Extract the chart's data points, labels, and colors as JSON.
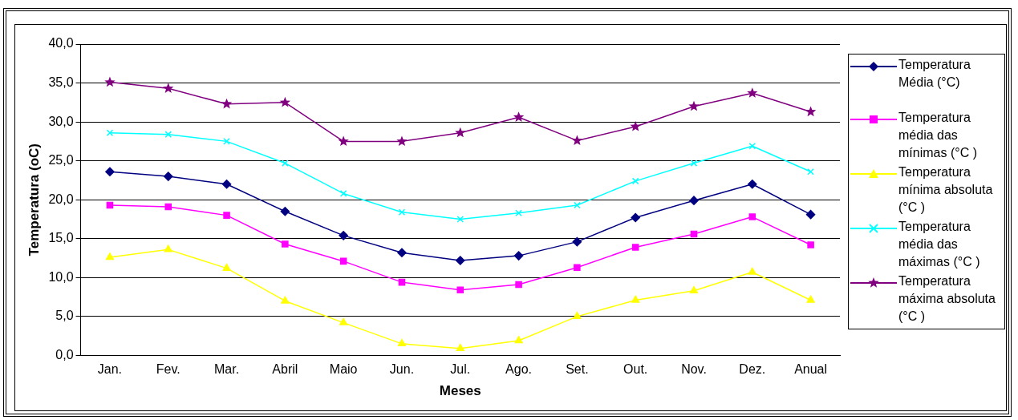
{
  "chart_data": {
    "type": "line",
    "xlabel": "Meses",
    "ylabel": "Temperatura (oC)",
    "categories": [
      "Jan.",
      "Fev.",
      "Mar.",
      "Abril",
      "Maio",
      "Jun.",
      "Jul.",
      "Ago.",
      "Set.",
      "Out.",
      "Nov.",
      "Dez.",
      "Anual"
    ],
    "series": [
      {
        "name": "Temperatura Média (°C)",
        "color": "#000080",
        "marker": "diamond",
        "values": [
          23.6,
          23.0,
          22.0,
          18.5,
          15.4,
          13.2,
          12.2,
          12.8,
          14.6,
          17.7,
          19.9,
          22.0,
          18.1
        ]
      },
      {
        "name": "Temperatura média das mínimas (°C )",
        "color": "#ff00ff",
        "marker": "square",
        "values": [
          19.3,
          19.1,
          18.0,
          14.3,
          12.1,
          9.4,
          8.4,
          9.1,
          11.3,
          13.9,
          15.6,
          17.8,
          14.2
        ]
      },
      {
        "name": "Temperatura mínima absoluta (°C )",
        "color": "#ffff00",
        "marker": "triangle",
        "values": [
          12.6,
          13.6,
          11.2,
          7.0,
          4.2,
          1.5,
          0.9,
          1.9,
          5.0,
          7.1,
          8.3,
          10.7,
          7.1
        ]
      },
      {
        "name": "Temperatura média das máximas (°C )",
        "color": "#00ffff",
        "marker": "cross",
        "values": [
          28.6,
          28.4,
          27.5,
          24.7,
          20.8,
          18.4,
          17.5,
          18.3,
          19.3,
          22.4,
          24.7,
          26.9,
          23.6
        ]
      },
      {
        "name": "Temperatura máxima absoluta (°C )",
        "color": "#800080",
        "marker": "star",
        "values": [
          35.1,
          34.3,
          32.3,
          32.5,
          27.5,
          27.5,
          28.6,
          30.6,
          27.6,
          29.4,
          32.0,
          33.7,
          31.3
        ]
      }
    ],
    "ylim": [
      0,
      40
    ],
    "yticks": [
      {
        "value": 0,
        "label": "0,0"
      },
      {
        "value": 5,
        "label": "5,0"
      },
      {
        "value": 10,
        "label": "10,0"
      },
      {
        "value": 15,
        "label": "15,0"
      },
      {
        "value": 20,
        "label": "20,0"
      },
      {
        "value": 25,
        "label": "25,0"
      },
      {
        "value": 30,
        "label": "30,0"
      },
      {
        "value": 35,
        "label": "35,0"
      },
      {
        "value": 40,
        "label": "40,0"
      }
    ],
    "grid": "y",
    "legend": "right",
    "line_style": "solid"
  }
}
